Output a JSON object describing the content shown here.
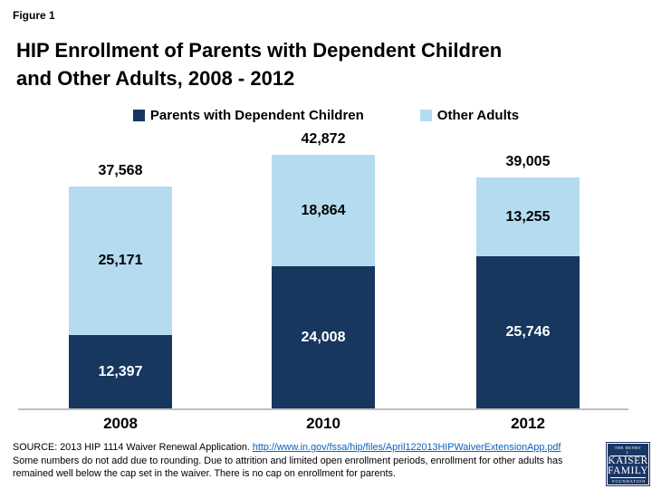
{
  "figure_label": "Figure 1",
  "title_line1": "HIP Enrollment of Parents with Dependent Children",
  "title_line2": "and Other Adults, 2008 - 2012",
  "colors": {
    "parents": "#17375E",
    "other_adults": "#B5DBF0",
    "link_blue": "#0563C1",
    "axis_line": "#BFBFBF",
    "logo_navy": "#1A3665",
    "label_on_dark": "#FFFFFF",
    "label_on_light": "#000000"
  },
  "chart_data": {
    "type": "bar",
    "stacked": true,
    "title": "HIP Enrollment of Parents with Dependent Children and Other Adults, 2008 - 2012",
    "categories": [
      "2008",
      "2010",
      "2012"
    ],
    "series": [
      {
        "name": "Parents with Dependent Children",
        "color": "#17375E",
        "values": [
          12397,
          24008,
          25746
        ]
      },
      {
        "name": "Other Adults",
        "color": "#B5DBF0",
        "values": [
          25171,
          18864,
          13255
        ]
      }
    ],
    "totals": [
      37568,
      42872,
      39005
    ],
    "ylim": [
      0,
      46000
    ],
    "grid": false,
    "legend_position": "top",
    "bars": [
      {
        "category": "2008",
        "total_label": "37,568",
        "other_label": "25,171",
        "parents_label": "12,397"
      },
      {
        "category": "2010",
        "total_label": "42,872",
        "other_label": "18,864",
        "parents_label": "24,008"
      },
      {
        "category": "2012",
        "total_label": "39,005",
        "other_label": "13,255",
        "parents_label": "25,746"
      }
    ]
  },
  "legend": {
    "series1_label": "Parents with Dependent Children",
    "series2_label": "Other Adults"
  },
  "source": {
    "prefix": "SOURCE: 2013 HIP 1114 Waiver Renewal Application. ",
    "link": "http://www.in.gov/fssa/hip/files/April122013HIPWaiverExtensionApp.pdf",
    "note": "Some numbers do not add due to rounding.  Due to attrition and limited open enrollment periods, enrollment for other adults has remained well below the cap set in the waiver.  There is no cap on enrollment for parents."
  },
  "logo": {
    "line1": "THE HENRY J.",
    "line2": "KAISER",
    "line3": "FAMILY",
    "line4": "FOUNDATION"
  }
}
